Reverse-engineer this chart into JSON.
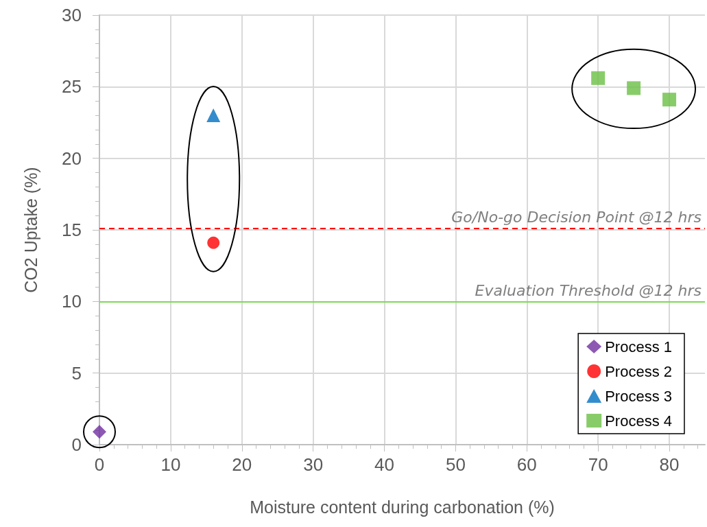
{
  "chart_data": {
    "type": "scatter",
    "xlabel": "Moisture content during carbonation (%)",
    "ylabel": "CO2 Uptake (%)",
    "xlim": [
      0,
      85
    ],
    "xticks": [
      0,
      10,
      20,
      30,
      40,
      50,
      60,
      70,
      80
    ],
    "ylim": [
      0,
      30
    ],
    "yticks": [
      0,
      5,
      10,
      15,
      20,
      25,
      30
    ],
    "grid": true,
    "legend": "bottom right",
    "series": [
      {
        "name": "Process 1",
        "color": "#7030a0",
        "marker": "diamond",
        "x": [
          0
        ],
        "values": [
          0.9
        ]
      },
      {
        "name": "Process 2",
        "color": "#ff0000",
        "marker": "circle",
        "x": [
          16
        ],
        "values": [
          14.1
        ]
      },
      {
        "name": "Process 3",
        "color": "#0070c0",
        "marker": "triangle",
        "x": [
          16
        ],
        "values": [
          23
        ]
      },
      {
        "name": "Process 4",
        "color": "#6abf45",
        "marker": "square",
        "x": [
          70,
          75,
          80
        ],
        "values": [
          25.6,
          24.9,
          24.1
        ]
      }
    ],
    "ref_lines": [
      {
        "axis": "y",
        "value": 15.1,
        "label": "Go/No-go Decision Point @12 hrs",
        "color": "#ff0000",
        "line_style": "dashed"
      },
      {
        "axis": "y",
        "value": 10,
        "label": "Evaluation Threshold @12 hrs",
        "color": "#7ed957",
        "line_style": "solid"
      }
    ]
  }
}
